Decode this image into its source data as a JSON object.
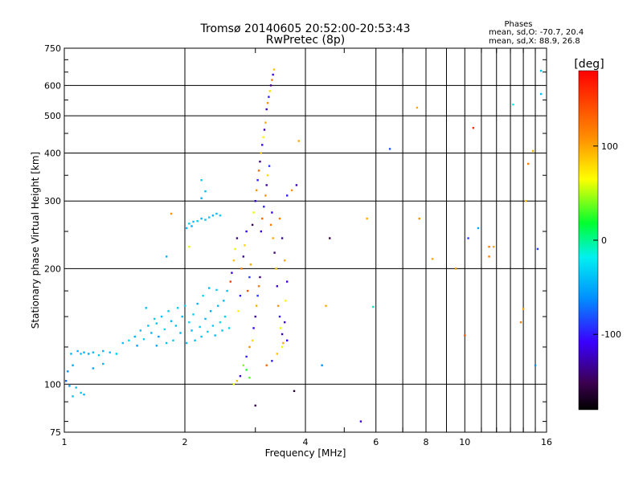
{
  "chart_data": {
    "type": "scatter",
    "title": "Tromsø 20140605 20:52:00-20:53:43",
    "subtitle": "RwPretec (8p)",
    "xlabel": "Frequency [MHz]",
    "ylabel": "Stationary phase Virtual Height [km]",
    "x_scale": "log",
    "y_scale": "log",
    "xlim": [
      1,
      16
    ],
    "ylim": [
      75,
      750
    ],
    "x_ticks": [
      1,
      2,
      4,
      6,
      8,
      10,
      16
    ],
    "x_tick_labels": [
      "1",
      "2",
      "4",
      "6",
      "8",
      "10",
      "16"
    ],
    "y_ticks": [
      75,
      100,
      200,
      300,
      400,
      500,
      600,
      750
    ],
    "y_tick_labels": [
      "75",
      "100",
      "200",
      "300",
      "400",
      "500",
      "600",
      "750"
    ],
    "grid": true,
    "stats": {
      "heading": "Phases",
      "line1": "mean, sd,O: -70.7, 20.4",
      "line2": "mean, sd,X:  88.9, 26.8"
    },
    "colorbar": {
      "label": "[deg]",
      "range": [
        -180,
        180
      ],
      "ticks": [
        100,
        0,
        -100
      ],
      "tick_labels": [
        "100",
        "0",
        "-100"
      ],
      "colormap": "rainbow (black-purple-blue-cyan-green-yellow-orange-red)"
    },
    "points": [
      [
        1.01,
        102,
        -75
      ],
      [
        1.02,
        108,
        -60
      ],
      [
        1.03,
        99,
        -55
      ],
      [
        1.04,
        120,
        -45
      ],
      [
        1.05,
        112,
        -50
      ],
      [
        1.07,
        98,
        -40
      ],
      [
        1.08,
        122,
        -45
      ],
      [
        1.1,
        120,
        -40
      ],
      [
        1.12,
        121,
        -45
      ],
      [
        1.15,
        120,
        -50
      ],
      [
        1.18,
        121,
        -40
      ],
      [
        1.22,
        119,
        -35
      ],
      [
        1.25,
        122,
        -45
      ],
      [
        1.3,
        121,
        -40
      ],
      [
        1.35,
        120,
        -45
      ],
      [
        1.4,
        128,
        -40
      ],
      [
        1.45,
        130,
        -30
      ],
      [
        1.5,
        133,
        -45
      ],
      [
        1.52,
        126,
        -55
      ],
      [
        1.55,
        138,
        -40
      ],
      [
        1.58,
        131,
        -35
      ],
      [
        1.62,
        142,
        -40
      ],
      [
        1.65,
        136,
        -45
      ],
      [
        1.68,
        148,
        -35
      ],
      [
        1.7,
        144,
        -40
      ],
      [
        1.72,
        133,
        -55
      ],
      [
        1.75,
        150,
        -40
      ],
      [
        1.78,
        139,
        -30
      ],
      [
        1.8,
        128,
        -40
      ],
      [
        1.82,
        155,
        -35
      ],
      [
        1.85,
        146,
        -45
      ],
      [
        1.87,
        130,
        -35
      ],
      [
        1.9,
        142,
        -40
      ],
      [
        1.92,
        158,
        -35
      ],
      [
        1.95,
        136,
        -45
      ],
      [
        1.97,
        150,
        -40
      ],
      [
        2.0,
        160,
        -35
      ],
      [
        2.02,
        128,
        -40
      ],
      [
        2.05,
        145,
        -30
      ],
      [
        2.08,
        138,
        -45
      ],
      [
        2.1,
        152,
        -35
      ],
      [
        2.12,
        130,
        -40
      ],
      [
        2.15,
        162,
        -45
      ],
      [
        2.18,
        141,
        -35
      ],
      [
        2.2,
        133,
        -40
      ],
      [
        2.22,
        170,
        -30
      ],
      [
        2.25,
        148,
        -45
      ],
      [
        2.28,
        137,
        -35
      ],
      [
        2.3,
        178,
        -40
      ],
      [
        2.32,
        155,
        -50
      ],
      [
        2.35,
        142,
        -35
      ],
      [
        2.38,
        134,
        -40
      ],
      [
        2.4,
        176,
        -35
      ],
      [
        2.42,
        160,
        -45
      ],
      [
        2.45,
        145,
        -30
      ],
      [
        2.48,
        138,
        -40
      ],
      [
        2.5,
        165,
        -45
      ],
      [
        2.52,
        150,
        -35
      ],
      [
        2.55,
        175,
        -40
      ],
      [
        2.58,
        140,
        -30
      ],
      [
        2.02,
        255,
        -40
      ],
      [
        2.05,
        262,
        -35
      ],
      [
        2.08,
        258,
        -50
      ],
      [
        2.1,
        265,
        -40
      ],
      [
        2.15,
        266,
        -35
      ],
      [
        2.2,
        270,
        -45
      ],
      [
        2.25,
        268,
        -40
      ],
      [
        2.3,
        272,
        -35
      ],
      [
        2.35,
        275,
        -45
      ],
      [
        2.4,
        278,
        -40
      ],
      [
        2.45,
        275,
        -35
      ],
      [
        2.2,
        305,
        -45
      ],
      [
        2.25,
        318,
        -40
      ],
      [
        2.2,
        340,
        -35
      ],
      [
        2.05,
        228,
        60
      ],
      [
        1.85,
        278,
        110
      ],
      [
        1.8,
        215,
        -45
      ],
      [
        1.35,
        120,
        -30
      ],
      [
        1.6,
        158,
        -40
      ],
      [
        1.7,
        126,
        -50
      ],
      [
        1.25,
        113,
        -45
      ],
      [
        1.05,
        93,
        -40
      ],
      [
        1.1,
        95,
        -35
      ],
      [
        1.12,
        94,
        -45
      ],
      [
        1.18,
        110,
        -50
      ],
      [
        2.6,
        185,
        150
      ],
      [
        2.62,
        195,
        -120
      ],
      [
        2.65,
        210,
        90
      ],
      [
        2.67,
        225,
        60
      ],
      [
        2.7,
        240,
        -140
      ],
      [
        2.72,
        155,
        70
      ],
      [
        2.75,
        170,
        -100
      ],
      [
        2.77,
        200,
        120
      ],
      [
        2.8,
        215,
        -130
      ],
      [
        2.82,
        230,
        80
      ],
      [
        2.85,
        250,
        -110
      ],
      [
        2.87,
        175,
        140
      ],
      [
        2.9,
        190,
        -90
      ],
      [
        2.92,
        205,
        100
      ],
      [
        2.95,
        260,
        -150
      ],
      [
        2.97,
        280,
        60
      ],
      [
        3.0,
        300,
        -120
      ],
      [
        3.02,
        320,
        110
      ],
      [
        3.04,
        340,
        -100
      ],
      [
        3.06,
        360,
        130
      ],
      [
        3.08,
        380,
        -140
      ],
      [
        3.1,
        400,
        90
      ],
      [
        3.12,
        420,
        -110
      ],
      [
        3.14,
        440,
        70
      ],
      [
        3.16,
        460,
        -130
      ],
      [
        3.18,
        480,
        100
      ],
      [
        3.2,
        520,
        -120
      ],
      [
        3.22,
        540,
        110
      ],
      [
        3.24,
        560,
        -100
      ],
      [
        3.26,
        580,
        80
      ],
      [
        3.28,
        600,
        -140
      ],
      [
        3.3,
        620,
        120
      ],
      [
        3.32,
        640,
        -110
      ],
      [
        3.34,
        660,
        90
      ],
      [
        3.1,
        250,
        -120
      ],
      [
        3.12,
        270,
        130
      ],
      [
        3.15,
        290,
        -100
      ],
      [
        3.18,
        310,
        110
      ],
      [
        3.2,
        330,
        -130
      ],
      [
        3.22,
        350,
        80
      ],
      [
        3.25,
        370,
        -90
      ],
      [
        3.28,
        260,
        120
      ],
      [
        3.3,
        280,
        -110
      ],
      [
        3.32,
        240,
        100
      ],
      [
        3.35,
        220,
        -140
      ],
      [
        3.38,
        200,
        90
      ],
      [
        3.4,
        180,
        -120
      ],
      [
        3.42,
        160,
        110
      ],
      [
        3.45,
        150,
        -100
      ],
      [
        3.47,
        140,
        60
      ],
      [
        3.5,
        135,
        -130
      ],
      [
        3.52,
        128,
        100
      ],
      [
        3.55,
        145,
        -110
      ],
      [
        3.57,
        165,
        70
      ],
      [
        3.6,
        185,
        -120
      ],
      [
        3.0,
        150,
        -130
      ],
      [
        3.02,
        160,
        100
      ],
      [
        3.04,
        170,
        -90
      ],
      [
        3.06,
        180,
        120
      ],
      [
        3.08,
        190,
        -140
      ],
      [
        2.95,
        130,
        80
      ],
      [
        2.97,
        140,
        -110
      ],
      [
        2.9,
        125,
        110
      ],
      [
        2.85,
        118,
        -100
      ],
      [
        2.8,
        112,
        40
      ],
      [
        2.75,
        105,
        -120
      ],
      [
        2.7,
        102,
        90
      ],
      [
        2.65,
        100,
        60
      ],
      [
        2.9,
        104,
        30
      ],
      [
        2.85,
        109,
        20
      ],
      [
        3.0,
        88,
        -150
      ],
      [
        3.2,
        112,
        130
      ],
      [
        3.3,
        115,
        -100
      ],
      [
        3.4,
        120,
        90
      ],
      [
        3.5,
        125,
        60
      ],
      [
        3.6,
        130,
        -110
      ],
      [
        3.55,
        210,
        100
      ],
      [
        3.5,
        240,
        -130
      ],
      [
        3.45,
        270,
        120
      ],
      [
        3.6,
        310,
        -100
      ],
      [
        3.7,
        320,
        110
      ],
      [
        3.8,
        330,
        -130
      ],
      [
        3.85,
        430,
        100
      ],
      [
        3.75,
        96,
        -160
      ],
      [
        4.5,
        160,
        100
      ],
      [
        4.4,
        112,
        -60
      ],
      [
        4.6,
        240,
        -150
      ],
      [
        5.5,
        80,
        -120
      ],
      [
        5.7,
        270,
        100
      ],
      [
        5.9,
        159,
        -10
      ],
      [
        6.5,
        410,
        -80
      ],
      [
        7.6,
        525,
        100
      ],
      [
        7.7,
        270,
        110
      ],
      [
        8.3,
        212,
        100
      ],
      [
        9.5,
        200,
        110
      ],
      [
        10.0,
        134,
        140
      ],
      [
        10.5,
        465,
        160
      ],
      [
        10.2,
        240,
        -90
      ],
      [
        10.8,
        255,
        -50
      ],
      [
        11.5,
        228,
        120
      ],
      [
        11.8,
        228,
        100
      ],
      [
        11.5,
        215,
        120
      ],
      [
        13.2,
        535,
        -20
      ],
      [
        13.8,
        145,
        120
      ],
      [
        14.0,
        157,
        100
      ],
      [
        14.2,
        300,
        90
      ],
      [
        14.4,
        375,
        120
      ],
      [
        15.0,
        112,
        -60
      ],
      [
        15.2,
        225,
        -90
      ],
      [
        15.5,
        655,
        -40
      ],
      [
        15.5,
        570,
        -40
      ],
      [
        14.8,
        405,
        100
      ]
    ]
  }
}
